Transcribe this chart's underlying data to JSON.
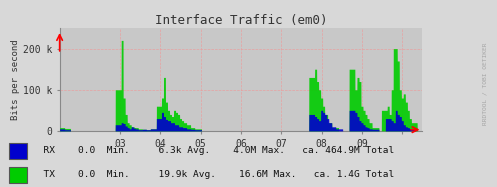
{
  "title": "Interface Traffic (em0)",
  "ylabel": "Bits per second",
  "bg_color": "#d8d8d8",
  "plot_bg_color": "#c8c8c8",
  "rx_color": "#0000cc",
  "tx_color": "#00cc00",
  "axis_color": "#888888",
  "x_ticks": [
    2,
    3,
    4,
    5,
    6,
    7,
    8,
    9
  ],
  "x_tick_labels": [
    "03",
    "04",
    "05",
    "06",
    "07",
    "08",
    "09",
    ""
  ],
  "y_ticks": [
    0,
    100000,
    200000
  ],
  "y_tick_labels": [
    "0",
    "100 k",
    "200 k"
  ],
  "ylim": [
    0,
    250000
  ],
  "xlim": [
    0.5,
    9.5
  ],
  "watermark": "RRDTOOL / TOBI OETIKER",
  "legend": [
    {
      "label": "RX",
      "color": "#0000cc",
      "min": "0.0",
      "avg": "6.3k",
      "max": "4.0M",
      "total": "464.9M"
    },
    {
      "label": "TX",
      "color": "#00cc00",
      "min": "0.0",
      "avg": "19.9k",
      "max": "16.6M",
      "total": "1.4G"
    }
  ],
  "rx_data": [
    [
      0.6,
      5000
    ],
    [
      0.65,
      3000
    ],
    [
      2.0,
      15000
    ],
    [
      2.05,
      20000
    ],
    [
      2.1,
      18000
    ],
    [
      2.15,
      12000
    ],
    [
      2.2,
      8000
    ],
    [
      2.25,
      5000
    ],
    [
      2.3,
      10000
    ],
    [
      2.35,
      7000
    ],
    [
      2.4,
      5000
    ],
    [
      2.5,
      3000
    ],
    [
      2.6,
      4000
    ],
    [
      2.7,
      3000
    ],
    [
      2.8,
      5000
    ],
    [
      3.0,
      30000
    ],
    [
      3.05,
      45000
    ],
    [
      3.1,
      35000
    ],
    [
      3.15,
      28000
    ],
    [
      3.2,
      25000
    ],
    [
      3.3,
      20000
    ],
    [
      3.4,
      15000
    ],
    [
      3.5,
      10000
    ],
    [
      3.6,
      8000
    ],
    [
      3.7,
      5000
    ],
    [
      3.8,
      4000
    ],
    [
      3.9,
      3000
    ],
    [
      6.8,
      40000
    ],
    [
      6.85,
      35000
    ],
    [
      6.9,
      30000
    ],
    [
      6.95,
      25000
    ],
    [
      7.0,
      50000
    ],
    [
      7.05,
      45000
    ],
    [
      7.1,
      40000
    ],
    [
      7.15,
      30000
    ],
    [
      7.2,
      20000
    ],
    [
      7.3,
      10000
    ],
    [
      7.4,
      5000
    ],
    [
      7.8,
      50000
    ],
    [
      7.85,
      45000
    ],
    [
      7.9,
      35000
    ],
    [
      7.95,
      25000
    ],
    [
      8.0,
      20000
    ],
    [
      8.05,
      15000
    ],
    [
      8.1,
      10000
    ],
    [
      8.15,
      8000
    ],
    [
      8.2,
      5000
    ],
    [
      8.3,
      4000
    ],
    [
      8.7,
      30000
    ],
    [
      8.75,
      25000
    ],
    [
      8.8,
      20000
    ],
    [
      8.85,
      50000
    ],
    [
      8.9,
      40000
    ],
    [
      8.95,
      35000
    ],
    [
      9.0,
      25000
    ],
    [
      9.05,
      15000
    ],
    [
      9.1,
      10000
    ],
    [
      9.15,
      8000
    ],
    [
      9.2,
      5000
    ]
  ],
  "tx_data": [
    [
      0.6,
      8000
    ],
    [
      0.65,
      6000
    ],
    [
      2.0,
      100000
    ],
    [
      2.05,
      220000
    ],
    [
      2.1,
      80000
    ],
    [
      2.15,
      40000
    ],
    [
      2.2,
      20000
    ],
    [
      2.25,
      15000
    ],
    [
      2.3,
      10000
    ],
    [
      2.4,
      8000
    ],
    [
      2.5,
      5000
    ],
    [
      2.6,
      4000
    ],
    [
      2.7,
      3000
    ],
    [
      2.8,
      5000
    ],
    [
      3.0,
      60000
    ],
    [
      3.05,
      80000
    ],
    [
      3.1,
      130000
    ],
    [
      3.15,
      70000
    ],
    [
      3.2,
      50000
    ],
    [
      3.25,
      40000
    ],
    [
      3.3,
      35000
    ],
    [
      3.35,
      50000
    ],
    [
      3.4,
      45000
    ],
    [
      3.45,
      40000
    ],
    [
      3.5,
      30000
    ],
    [
      3.55,
      25000
    ],
    [
      3.6,
      20000
    ],
    [
      3.7,
      15000
    ],
    [
      3.8,
      8000
    ],
    [
      3.9,
      5000
    ],
    [
      6.8,
      130000
    ],
    [
      6.85,
      150000
    ],
    [
      6.9,
      120000
    ],
    [
      6.95,
      100000
    ],
    [
      7.0,
      80000
    ],
    [
      7.05,
      60000
    ],
    [
      7.1,
      40000
    ],
    [
      7.2,
      20000
    ],
    [
      7.3,
      8000
    ],
    [
      7.8,
      150000
    ],
    [
      7.85,
      100000
    ],
    [
      7.9,
      130000
    ],
    [
      7.95,
      120000
    ],
    [
      8.0,
      60000
    ],
    [
      8.05,
      50000
    ],
    [
      8.1,
      40000
    ],
    [
      8.15,
      30000
    ],
    [
      8.2,
      20000
    ],
    [
      8.3,
      8000
    ],
    [
      8.6,
      50000
    ],
    [
      8.65,
      60000
    ],
    [
      8.7,
      40000
    ],
    [
      8.75,
      100000
    ],
    [
      8.8,
      200000
    ],
    [
      8.85,
      200000
    ],
    [
      8.9,
      170000
    ],
    [
      8.95,
      100000
    ],
    [
      9.0,
      80000
    ],
    [
      9.05,
      90000
    ],
    [
      9.1,
      70000
    ],
    [
      9.15,
      50000
    ],
    [
      9.2,
      30000
    ],
    [
      9.25,
      20000
    ]
  ]
}
